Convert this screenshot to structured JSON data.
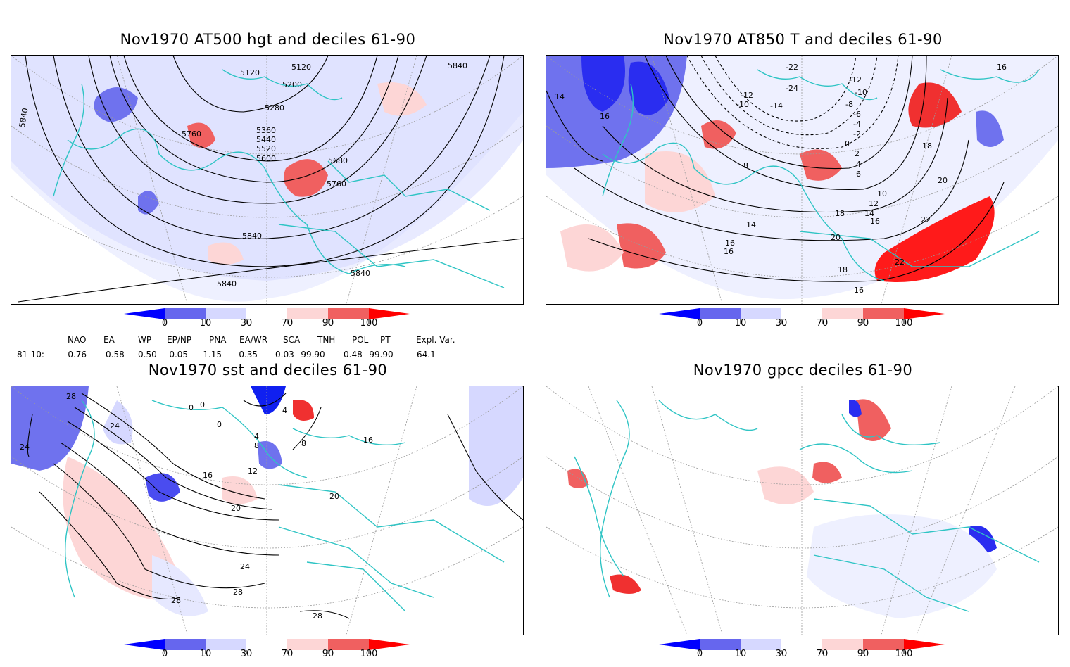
{
  "panels": [
    {
      "title": "Nov1970 AT500 hgt and deciles 61-90",
      "contour_labels": [
        "5120",
        "5120",
        "5200",
        "5280",
        "5360",
        "5440",
        "5520",
        "5600",
        "5680",
        "5760",
        "5760",
        "5840",
        "5840",
        "5840",
        "5840",
        "5840"
      ]
    },
    {
      "title": "Nov1970 AT850 T and deciles 61-90",
      "contour_labels": [
        "-22",
        "-24",
        "-12",
        "-10",
        "-14",
        "-12",
        "-10",
        "-8",
        "-6",
        "-4",
        "-2",
        "0",
        "2",
        "4",
        "6",
        "8",
        "10",
        "12",
        "14",
        "14",
        "16",
        "16",
        "16",
        "16",
        "18",
        "18",
        "18",
        "20",
        "20",
        "22",
        "22",
        "14",
        "16",
        "16"
      ]
    },
    {
      "title": "Nov1970 sst and deciles 61-90",
      "contour_labels": [
        "28",
        "24",
        "24",
        "0",
        "0",
        "0",
        "4",
        "4",
        "8",
        "8",
        "12",
        "16",
        "16",
        "20",
        "20",
        "24",
        "28",
        "28",
        "28"
      ]
    },
    {
      "title": "Nov1970 gpcc deciles 61-90",
      "contour_labels": []
    }
  ],
  "colorbar": {
    "labels": [
      "0",
      "10",
      "30",
      "70",
      "90",
      "100"
    ],
    "colors": [
      "#0000ff",
      "#6666ee",
      "#d6d8ff",
      "#ffffff",
      "#fdd6d6",
      "#f06060",
      "#ff0000"
    ]
  },
  "indices": {
    "row_label": "81-10:",
    "names": [
      "NAO",
      "EA",
      "WP",
      "EP/NP",
      "PNA",
      "EA/WR",
      "SCA",
      "TNH",
      "POL",
      "PT",
      "Expl. Var."
    ],
    "values": [
      "-0.76",
      "0.58",
      "0.50",
      "-0.05",
      "-1.15",
      "-0.35",
      "0.03",
      "-99.90",
      "0.48",
      "-99.90",
      "64.1"
    ]
  },
  "colors": {
    "coast": "#2ec4c4",
    "contour": "#000000",
    "grid": "#9a9a9a"
  }
}
